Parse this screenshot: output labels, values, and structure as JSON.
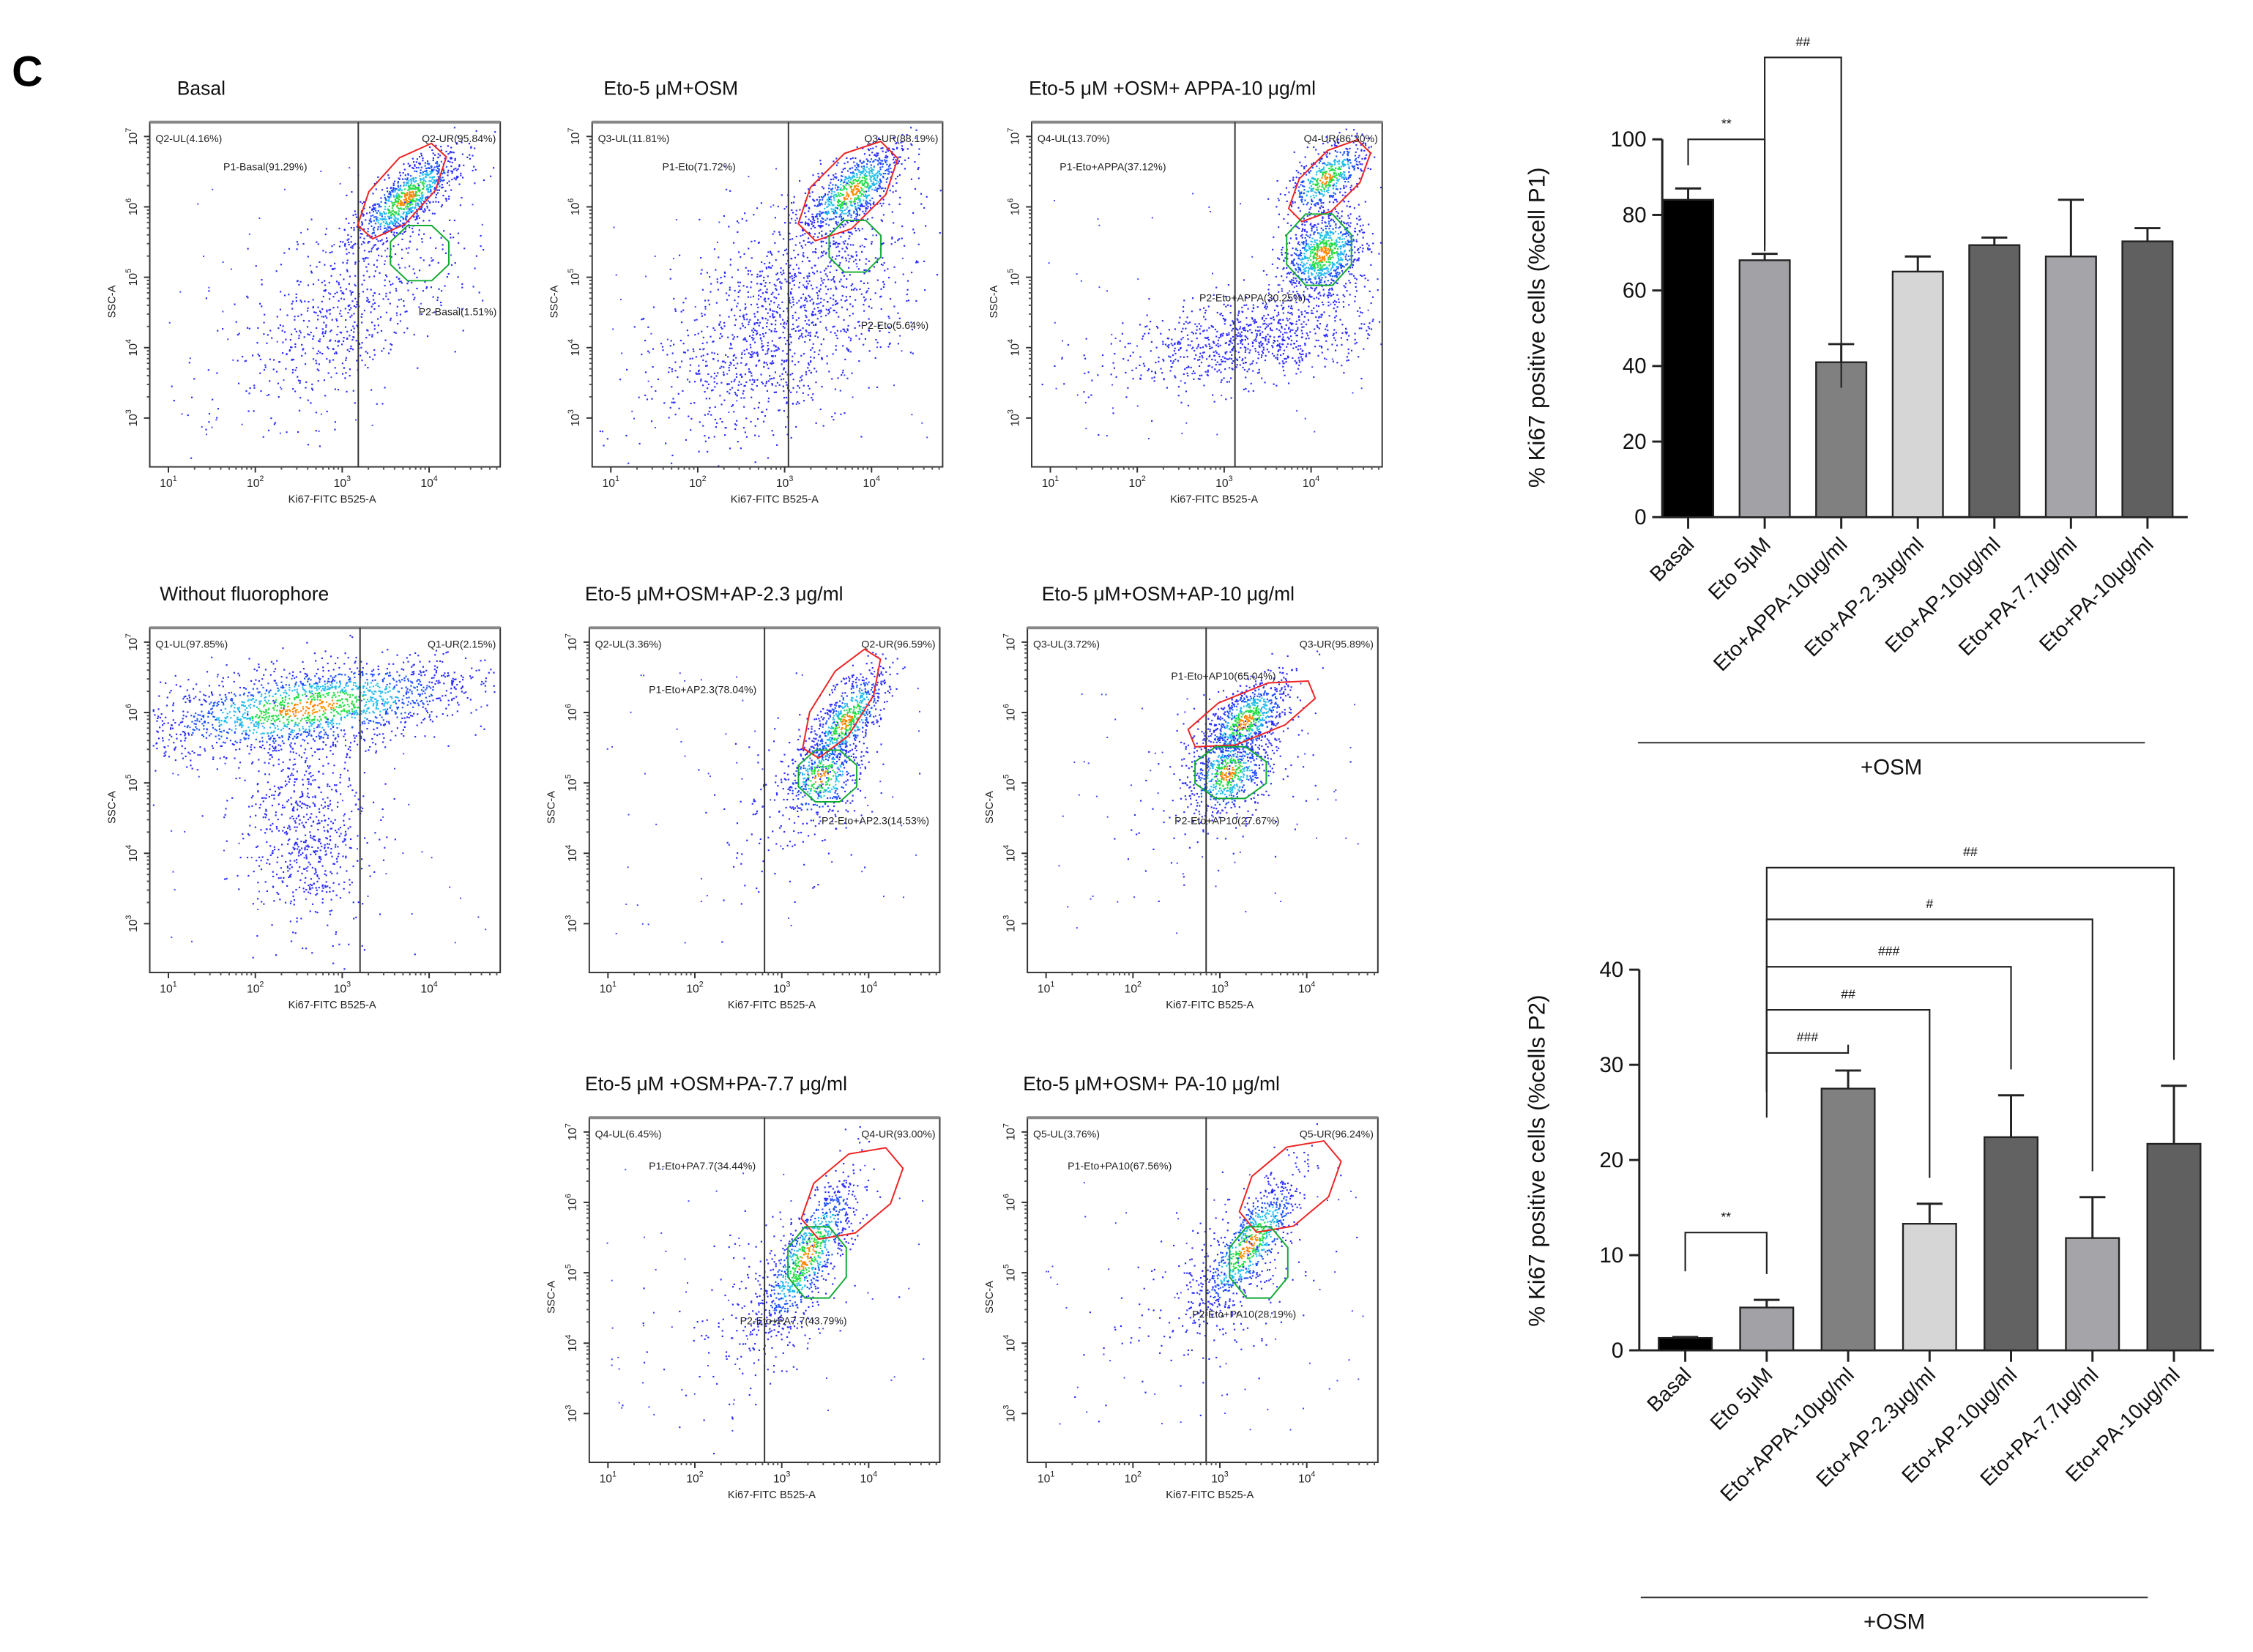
{
  "figure_label": "C",
  "flow_axis": {
    "x_label": "Ki67-FITC B525-A",
    "y_label": "SSC-A",
    "base": "10",
    "x_exponents": [
      "1",
      "2",
      "3",
      "4"
    ],
    "y_exponents": [
      "7",
      "6",
      "5",
      "4",
      "3"
    ]
  },
  "panels": [
    {
      "title": "Basal",
      "q_ul": "Q2-UL(4.16%)",
      "q_ur": "Q2-UR(95.84%)",
      "p1": "P1-Basal(91.29%)",
      "p2": "P2-Basal(1.51%)"
    },
    {
      "title": "Eto-5 μM+OSM",
      "q_ul": "Q3-UL(11.81%)",
      "q_ur": "Q3-UR(88.19%)",
      "p1": "P1-Eto(71.72%)",
      "p2": "P2-Eto(5.64%)"
    },
    {
      "title": "Eto-5 μM +OSM+ APPA-10 μg/ml",
      "q_ul": "Q4-UL(13.70%)",
      "q_ur": "Q4-UR(86.30%)",
      "p1": "P1-Eto+APPA(37.12%)",
      "p2": "P2-Eto+APPA(30.25%)"
    },
    {
      "title": "Without fluorophore",
      "q_ul": "Q1-UL(97.85%)",
      "q_ur": "Q1-UR(2.15%)"
    },
    {
      "title": "Eto-5 μM+OSM+AP-2.3 μg/ml",
      "q_ul": "Q2-UL(3.36%)",
      "q_ur": "Q2-UR(96.59%)",
      "p1": "P1-Eto+AP2.3(78.04%)",
      "p2": "P2-Eto+AP2.3(14.53%)"
    },
    {
      "title": "Eto-5 μM+OSM+AP-10 μg/ml",
      "q_ul": "Q3-UL(3.72%)",
      "q_ur": "Q3-UR(95.89%)",
      "p1": "P1-Eto+AP10(65.04%)",
      "p2": "P2-Eto+AP10(27.67%)"
    },
    {
      "title": "Eto-5 μM +OSM+PA-7.7 μg/ml",
      "q_ul": "Q4-UL(6.45%)",
      "q_ur": "Q4-UR(93.00%)",
      "p1": "P1-Eto+PA7.7(34.44%)",
      "p2": "P2-Eto+PA7.7(43.79%)"
    },
    {
      "title": "Eto-5 μM+OSM+ PA-10 μg/ml",
      "q_ul": "Q5-UL(3.76%)",
      "q_ur": "Q5-UR(96.24%)",
      "p1": "P1-Eto+PA10(67.56%)",
      "p2": "P2-Eto+PA10(28.19%)"
    }
  ],
  "chart_data": [
    {
      "type": "bar",
      "title": "",
      "ylabel": "% Ki67 positive cells (%cell P1)",
      "xlabel": "",
      "group_label": "+OSM",
      "categories": [
        "Basal",
        "Eto 5μM",
        "Eto+APPA-10μg/ml",
        "Eto+AP-2.3μg/ml",
        "Eto+AP-10μg/ml",
        "Eto+PA-7.7μg/ml",
        "Eto+PA-10μg/ml"
      ],
      "values": [
        84,
        68,
        41,
        65,
        72,
        69,
        73
      ],
      "errors": [
        3,
        1.7,
        4.8,
        4,
        2,
        15,
        3.5
      ],
      "colors": [
        "#000000",
        "#a2a2a6",
        "#808080",
        "#d6d6d6",
        "#626262",
        "#a5a5a9",
        "#606060"
      ],
      "ylim": [
        0,
        100
      ],
      "yticks": [
        "0",
        "20",
        "40",
        "60",
        "80",
        "100"
      ],
      "significance": [
        {
          "from": 0,
          "to": 1,
          "label": "**"
        },
        {
          "from": 1,
          "to": 2,
          "label": "##"
        }
      ]
    },
    {
      "type": "bar",
      "title": "",
      "ylabel": "% Ki67 positive cells (%cells P2)",
      "xlabel": "",
      "group_label": "+OSM",
      "categories": [
        "Basal",
        "Eto 5μM",
        "Eto+APPA-10μg/ml",
        "Eto+AP-2.3μg/ml",
        "Eto+AP-10μg/ml",
        "Eto+PA-7.7μg/ml",
        "Eto+PA-10μg/ml"
      ],
      "values": [
        1.3,
        4.5,
        27.5,
        13.3,
        22.4,
        11.8,
        21.7
      ],
      "errors": [
        0.1,
        0.8,
        1.9,
        2.1,
        4.4,
        4.3,
        6.1
      ],
      "colors": [
        "#000000",
        "#a2a2a6",
        "#808080",
        "#d6d6d6",
        "#626262",
        "#a5a5a9",
        "#606060"
      ],
      "ylim": [
        0,
        40
      ],
      "yticks": [
        "0",
        "10",
        "20",
        "30",
        "40"
      ],
      "significance": [
        {
          "from": 0,
          "to": 1,
          "label": "**"
        },
        {
          "from": 1,
          "to": 2,
          "label": "###"
        },
        {
          "from": 1,
          "to": 3,
          "label": "##"
        },
        {
          "from": 1,
          "to": 4,
          "label": "###"
        },
        {
          "from": 1,
          "to": 5,
          "label": "#"
        },
        {
          "from": 1,
          "to": 6,
          "label": "##"
        }
      ]
    }
  ]
}
